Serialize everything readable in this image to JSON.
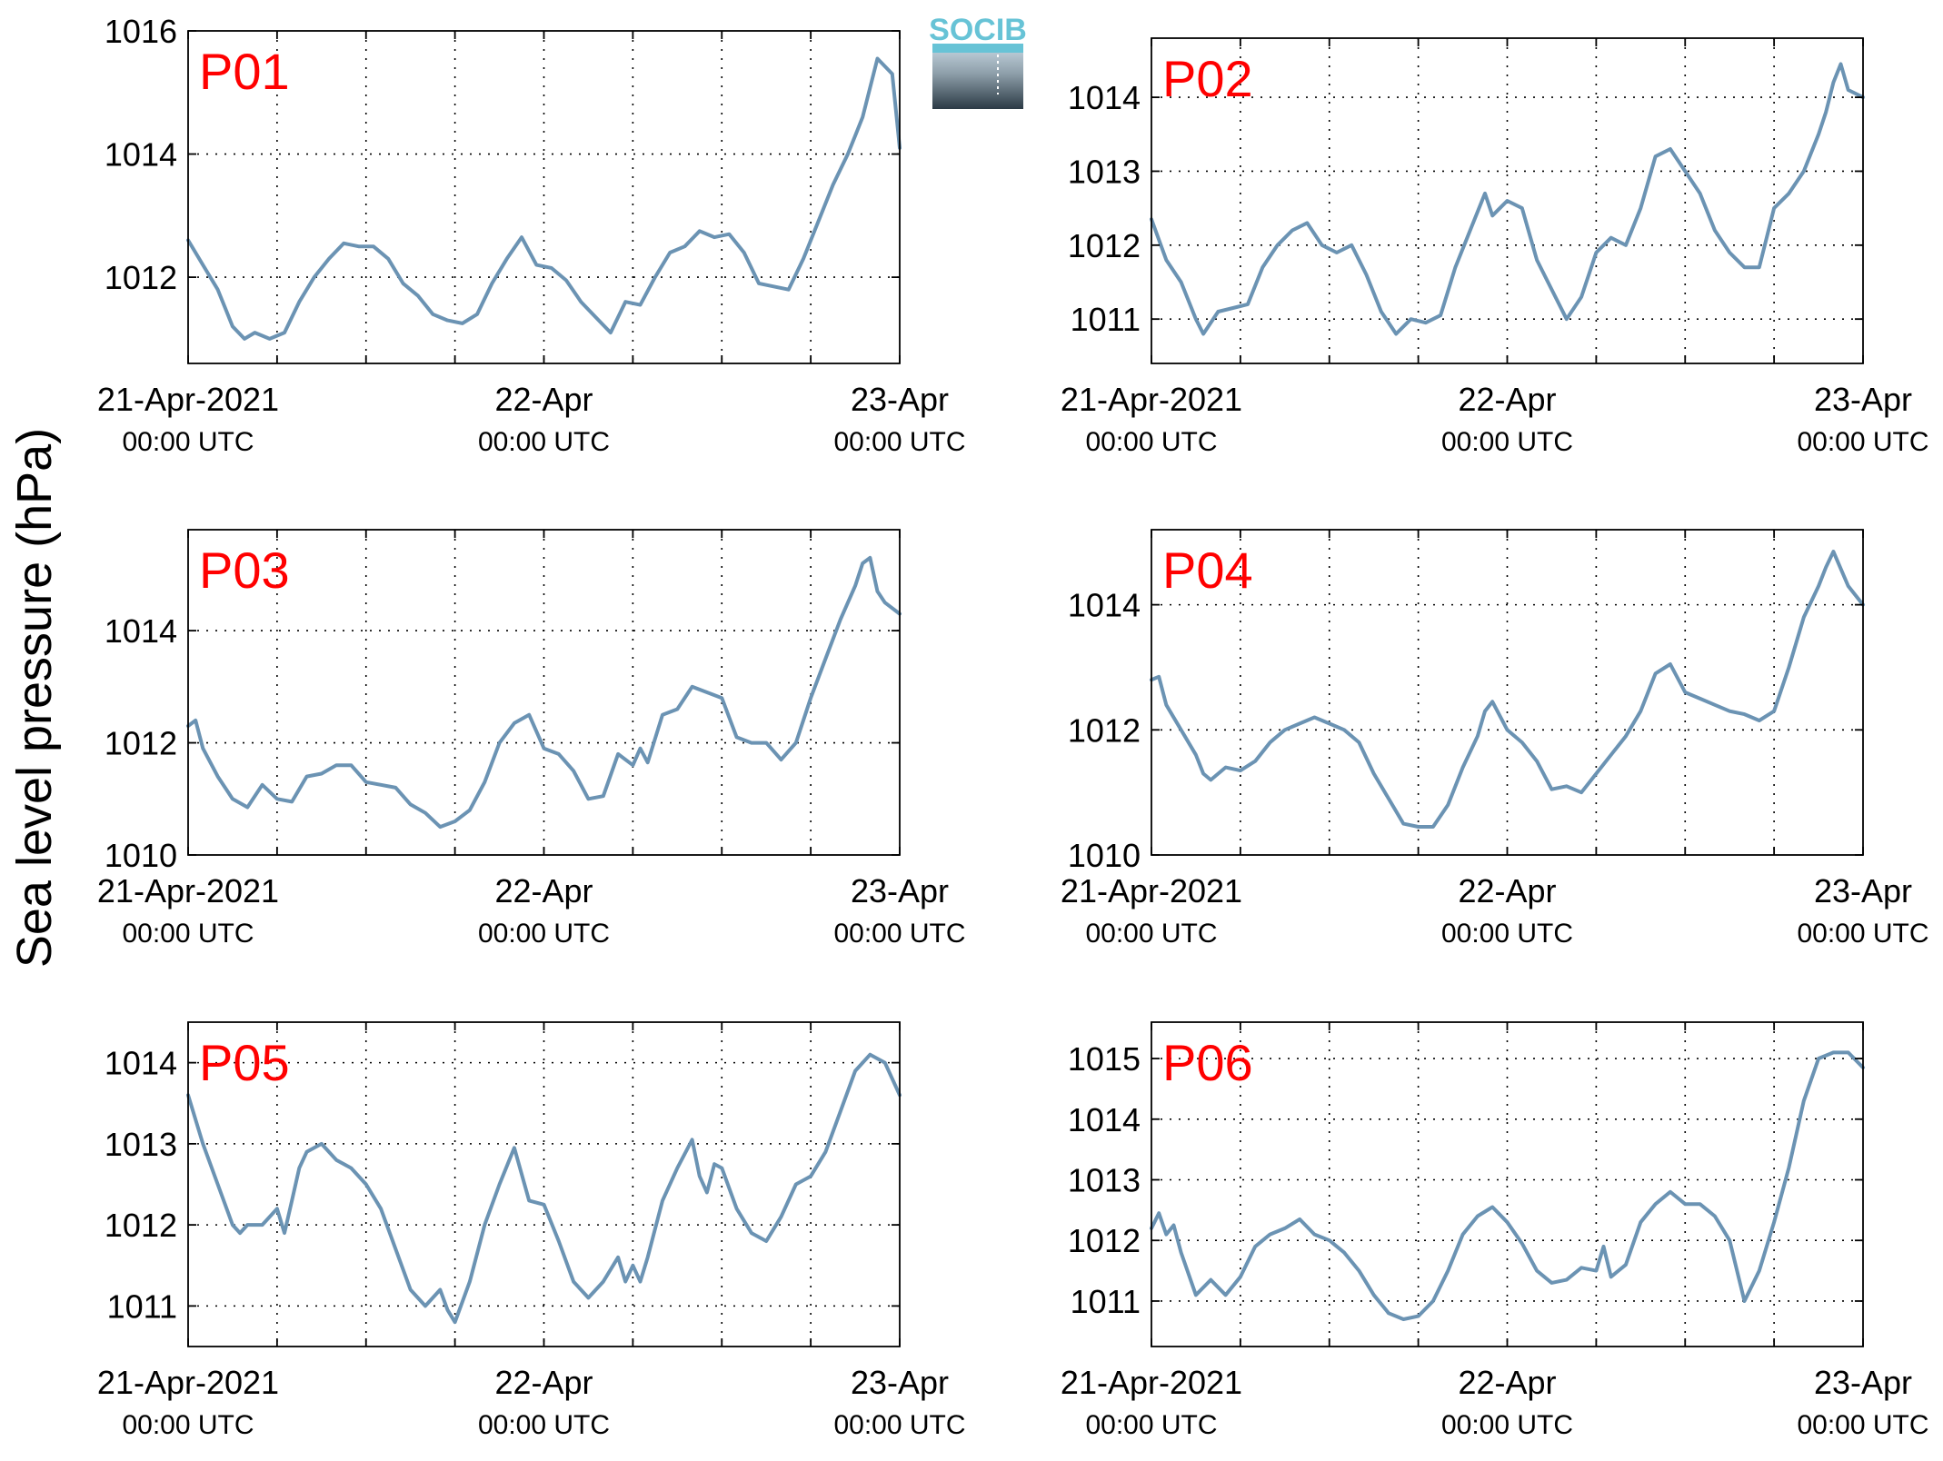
{
  "figure": {
    "ylabel": "Sea level pressure (hPa)",
    "logo_text": "SOCIB",
    "line_color": "#6b93b3",
    "label_color": "#ff0000"
  },
  "chart_data": [
    {
      "type": "line",
      "title": "P01",
      "xlim": [
        0,
        48
      ],
      "ylim": [
        1010.6,
        1016
      ],
      "yticks": [
        1012,
        1014,
        1016
      ],
      "xticks": [
        0,
        24,
        48
      ],
      "xtick_labels": [
        [
          "21-Apr-2021",
          "00:00 UTC"
        ],
        [
          "22-Apr",
          "00:00 UTC"
        ],
        [
          "23-Apr",
          "00:00 UTC"
        ]
      ],
      "minor_xticks": [
        6,
        12,
        18,
        30,
        36,
        42
      ],
      "grid": true,
      "x": [
        0,
        1,
        2,
        2.5,
        3,
        3.8,
        4.5,
        5.5,
        6.5,
        7.5,
        8.5,
        9.5,
        10.5,
        11.5,
        12.5,
        13.5,
        14.5,
        15.5,
        16.5,
        17.5,
        18.5,
        19.5,
        20.5,
        21.5,
        22.5,
        23.5,
        24.5,
        25.5,
        26.5,
        27.5,
        28.5,
        29.5,
        30.5,
        31.5,
        32.5,
        33.5,
        34.5,
        35.5,
        36.5,
        37.5,
        38.5,
        39.5,
        40.5,
        41.5,
        42.5,
        43.5,
        44.5,
        45,
        45.5,
        46.5,
        47.5,
        48
      ],
      "values": [
        1012.6,
        1012.2,
        1011.8,
        1011.5,
        1011.2,
        1011.0,
        1011.1,
        1011.0,
        1011.1,
        1011.6,
        1012.0,
        1012.3,
        1012.55,
        1012.5,
        1012.5,
        1012.3,
        1011.9,
        1011.7,
        1011.4,
        1011.3,
        1011.25,
        1011.4,
        1011.9,
        1012.3,
        1012.65,
        1012.2,
        1012.15,
        1011.95,
        1011.6,
        1011.35,
        1011.1,
        1011.6,
        1011.55,
        1012.0,
        1012.4,
        1012.5,
        1012.75,
        1012.65,
        1012.7,
        1012.4,
        1011.9,
        1011.85,
        1011.8,
        1012.3,
        1012.9,
        1013.5,
        1014.0,
        1014.3,
        1014.6,
        1015.55,
        1015.3,
        1014.1
      ]
    },
    {
      "type": "line",
      "title": "P02",
      "xlim": [
        0,
        48
      ],
      "ylim": [
        1010.4,
        1014.8
      ],
      "yticks": [
        1011,
        1012,
        1013,
        1014
      ],
      "xticks": [
        0,
        24,
        48
      ],
      "xtick_labels": [
        [
          "21-Apr-2021",
          "00:00 UTC"
        ],
        [
          "22-Apr",
          "00:00 UTC"
        ],
        [
          "23-Apr",
          "00:00 UTC"
        ]
      ],
      "minor_xticks": [
        6,
        12,
        18,
        30,
        36,
        42
      ],
      "grid": true,
      "x": [
        0,
        1,
        2,
        3,
        3.5,
        4.5,
        5.5,
        6.5,
        7.5,
        8.5,
        9.5,
        10.5,
        11.5,
        12.5,
        13.5,
        14.5,
        15.5,
        16.5,
        17.5,
        18.5,
        19.5,
        20.5,
        21.5,
        22.5,
        23,
        24,
        25,
        26,
        27,
        28,
        29,
        30,
        31,
        32,
        33,
        34,
        35,
        36,
        37,
        38,
        39,
        40,
        41,
        42,
        43,
        44,
        45,
        45.5,
        46,
        46.5,
        47,
        48
      ],
      "values": [
        1012.35,
        1011.8,
        1011.5,
        1011.0,
        1010.8,
        1011.1,
        1011.15,
        1011.2,
        1011.7,
        1012.0,
        1012.2,
        1012.3,
        1012.0,
        1011.9,
        1012.0,
        1011.6,
        1011.1,
        1010.8,
        1011.0,
        1010.95,
        1011.05,
        1011.7,
        1012.2,
        1012.7,
        1012.4,
        1012.6,
        1012.5,
        1011.8,
        1011.4,
        1011.0,
        1011.3,
        1011.9,
        1012.1,
        1012.0,
        1012.5,
        1013.2,
        1013.3,
        1013.0,
        1012.7,
        1012.2,
        1011.9,
        1011.7,
        1011.7,
        1012.5,
        1012.7,
        1013.0,
        1013.5,
        1013.8,
        1014.2,
        1014.45,
        1014.1,
        1014.0
      ]
    },
    {
      "type": "line",
      "title": "P03",
      "xlim": [
        0,
        48
      ],
      "ylim": [
        1010,
        1015.8
      ],
      "yticks": [
        1010,
        1012,
        1014
      ],
      "xticks": [
        0,
        24,
        48
      ],
      "xtick_labels": [
        [
          "21-Apr-2021",
          "00:00 UTC"
        ],
        [
          "22-Apr",
          "00:00 UTC"
        ],
        [
          "23-Apr",
          "00:00 UTC"
        ]
      ],
      "minor_xticks": [
        6,
        12,
        18,
        30,
        36,
        42
      ],
      "grid": true,
      "x": [
        0,
        0.5,
        1,
        2,
        3,
        4,
        5,
        6,
        7,
        8,
        9,
        10,
        11,
        12,
        13,
        14,
        15,
        16,
        17,
        18,
        19,
        20,
        21,
        22,
        23,
        24,
        25,
        26,
        27,
        28,
        29,
        30,
        30.5,
        31,
        32,
        33,
        34,
        35,
        36,
        37,
        38,
        39,
        40,
        41,
        42,
        43,
        44,
        45,
        45.5,
        46,
        46.5,
        47,
        48
      ],
      "values": [
        1012.3,
        1012.4,
        1011.9,
        1011.4,
        1011.0,
        1010.85,
        1011.25,
        1011.0,
        1010.95,
        1011.4,
        1011.45,
        1011.6,
        1011.6,
        1011.3,
        1011.25,
        1011.2,
        1010.9,
        1010.75,
        1010.5,
        1010.6,
        1010.8,
        1011.3,
        1012.0,
        1012.35,
        1012.5,
        1011.9,
        1011.8,
        1011.5,
        1011.0,
        1011.05,
        1011.8,
        1011.6,
        1011.9,
        1011.65,
        1012.5,
        1012.6,
        1013.0,
        1012.9,
        1012.8,
        1012.1,
        1012.0,
        1012.0,
        1011.7,
        1012.0,
        1012.8,
        1013.5,
        1014.2,
        1014.8,
        1015.2,
        1015.3,
        1014.7,
        1014.5,
        1014.3
      ]
    },
    {
      "type": "line",
      "title": "P04",
      "xlim": [
        0,
        48
      ],
      "ylim": [
        1010,
        1015.2
      ],
      "yticks": [
        1010,
        1012,
        1014
      ],
      "xticks": [
        0,
        24,
        48
      ],
      "xtick_labels": [
        [
          "21-Apr-2021",
          "00:00 UTC"
        ],
        [
          "22-Apr",
          "00:00 UTC"
        ],
        [
          "23-Apr",
          "00:00 UTC"
        ]
      ],
      "minor_xticks": [
        6,
        12,
        18,
        30,
        36,
        42
      ],
      "grid": true,
      "x": [
        0,
        0.5,
        1,
        2,
        3,
        3.5,
        4,
        5,
        6,
        7,
        8,
        9,
        10,
        11,
        12,
        13,
        14,
        15,
        16,
        17,
        18,
        19,
        20,
        21,
        22,
        22.5,
        23,
        24,
        25,
        26,
        27,
        28,
        29,
        30,
        31,
        32,
        33,
        34,
        35,
        36,
        37,
        38,
        39,
        40,
        41,
        42,
        43,
        44,
        45,
        45.5,
        46,
        47,
        48
      ],
      "values": [
        1012.8,
        1012.85,
        1012.4,
        1012.0,
        1011.6,
        1011.3,
        1011.2,
        1011.4,
        1011.35,
        1011.5,
        1011.8,
        1012.0,
        1012.1,
        1012.2,
        1012.1,
        1012.0,
        1011.8,
        1011.3,
        1010.9,
        1010.5,
        1010.45,
        1010.45,
        1010.8,
        1011.4,
        1011.9,
        1012.3,
        1012.45,
        1012.0,
        1011.8,
        1011.5,
        1011.05,
        1011.1,
        1011.0,
        1011.3,
        1011.6,
        1011.9,
        1012.3,
        1012.9,
        1013.05,
        1012.6,
        1012.5,
        1012.4,
        1012.3,
        1012.25,
        1012.15,
        1012.3,
        1013.0,
        1013.8,
        1014.3,
        1014.6,
        1014.85,
        1014.3,
        1014.0
      ]
    },
    {
      "type": "line",
      "title": "P05",
      "xlim": [
        0,
        48
      ],
      "ylim": [
        1010.5,
        1014.5
      ],
      "yticks": [
        1011,
        1012,
        1013,
        1014
      ],
      "xticks": [
        0,
        24,
        48
      ],
      "xtick_labels": [
        [
          "21-Apr-2021",
          "00:00 UTC"
        ],
        [
          "22-Apr",
          "00:00 UTC"
        ],
        [
          "23-Apr",
          "00:00 UTC"
        ]
      ],
      "minor_xticks": [
        6,
        12,
        18,
        30,
        36,
        42
      ],
      "grid": true,
      "x": [
        0,
        1,
        2,
        3,
        3.5,
        4,
        5,
        6,
        6.5,
        7,
        7.5,
        8,
        9,
        10,
        11,
        12,
        13,
        14,
        15,
        16,
        17,
        17.5,
        18,
        19,
        20,
        21,
        22,
        23,
        24,
        25,
        26,
        27,
        28,
        29,
        29.5,
        30,
        30.5,
        31,
        32,
        33,
        34,
        34.5,
        35,
        35.5,
        36,
        37,
        38,
        39,
        40,
        41,
        42,
        43,
        44,
        45,
        46,
        47,
        48
      ],
      "values": [
        1013.6,
        1013.0,
        1012.5,
        1012.0,
        1011.9,
        1012.0,
        1012.0,
        1012.2,
        1011.9,
        1012.3,
        1012.7,
        1012.9,
        1013.0,
        1012.8,
        1012.7,
        1012.5,
        1012.2,
        1011.7,
        1011.2,
        1011.0,
        1011.2,
        1010.95,
        1010.8,
        1011.3,
        1012.0,
        1012.5,
        1012.95,
        1012.3,
        1012.25,
        1011.8,
        1011.3,
        1011.1,
        1011.3,
        1011.6,
        1011.3,
        1011.5,
        1011.3,
        1011.6,
        1012.3,
        1012.7,
        1013.05,
        1012.6,
        1012.4,
        1012.75,
        1012.7,
        1012.2,
        1011.9,
        1011.8,
        1012.1,
        1012.5,
        1012.6,
        1012.9,
        1013.4,
        1013.9,
        1014.1,
        1014.0,
        1013.6
      ]
    },
    {
      "type": "line",
      "title": "P06",
      "xlim": [
        0,
        48
      ],
      "ylim": [
        1010.25,
        1015.6
      ],
      "yticks": [
        1011,
        1012,
        1013,
        1014,
        1015
      ],
      "xticks": [
        0,
        24,
        48
      ],
      "xtick_labels": [
        [
          "21-Apr-2021",
          "00:00 UTC"
        ],
        [
          "22-Apr",
          "00:00 UTC"
        ],
        [
          "23-Apr",
          "00:00 UTC"
        ]
      ],
      "minor_xticks": [
        6,
        12,
        18,
        30,
        36,
        42
      ],
      "grid": true,
      "x": [
        0,
        0.5,
        1,
        1.5,
        2,
        3,
        4,
        5,
        6,
        7,
        8,
        9,
        10,
        11,
        12,
        13,
        14,
        15,
        16,
        17,
        18,
        19,
        20,
        21,
        22,
        23,
        24,
        25,
        26,
        27,
        28,
        29,
        30,
        30.5,
        31,
        32,
        33,
        34,
        35,
        36,
        37,
        38,
        39,
        40,
        41,
        42,
        43,
        44,
        45,
        46,
        47,
        48
      ],
      "values": [
        1012.2,
        1012.45,
        1012.1,
        1012.25,
        1011.8,
        1011.1,
        1011.35,
        1011.1,
        1011.4,
        1011.9,
        1012.1,
        1012.2,
        1012.35,
        1012.1,
        1012.0,
        1011.8,
        1011.5,
        1011.1,
        1010.8,
        1010.7,
        1010.75,
        1011.0,
        1011.5,
        1012.1,
        1012.4,
        1012.55,
        1012.3,
        1011.95,
        1011.5,
        1011.3,
        1011.35,
        1011.55,
        1011.5,
        1011.9,
        1011.4,
        1011.6,
        1012.3,
        1012.6,
        1012.8,
        1012.6,
        1012.6,
        1012.4,
        1012.0,
        1011.0,
        1011.5,
        1012.3,
        1013.2,
        1014.3,
        1015.0,
        1015.1,
        1015.1,
        1014.85
      ]
    }
  ]
}
